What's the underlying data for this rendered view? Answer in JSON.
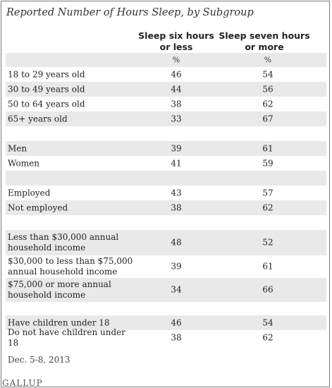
{
  "title": "Reported Number of Hours Sleep, by Subgroup",
  "chart_data": {
    "type": "table",
    "columns": [
      "Sleep six hours or less",
      "Sleep seven hours or more"
    ],
    "units": [
      "%",
      "%"
    ],
    "rows": [
      {
        "label": "18 to 29 years old",
        "values": [
          46,
          54
        ]
      },
      {
        "label": "30 to 49 years old",
        "values": [
          44,
          56
        ]
      },
      {
        "label": "50 to 64 years old",
        "values": [
          38,
          62
        ]
      },
      {
        "label": "65+ years old",
        "values": [
          33,
          67
        ]
      },
      {
        "label": "Men",
        "values": [
          39,
          61
        ]
      },
      {
        "label": "Women",
        "values": [
          41,
          59
        ]
      },
      {
        "label": "Employed",
        "values": [
          43,
          57
        ]
      },
      {
        "label": "Not employed",
        "values": [
          38,
          62
        ]
      },
      {
        "label": "Less than $30,000 annual household income",
        "values": [
          48,
          52
        ]
      },
      {
        "label": "$30,000 to less than $75,000 annual household income",
        "values": [
          39,
          61
        ]
      },
      {
        "label": "$75,000 or more annual household income",
        "values": [
          34,
          66
        ]
      },
      {
        "label": "Have children under 18",
        "values": [
          46,
          54
        ]
      },
      {
        "label": "Do not have children under 18",
        "values": [
          38,
          62
        ]
      }
    ]
  },
  "col1_head": [
    "Sleep six hours",
    "or less"
  ],
  "col2_head": [
    "Sleep seven hours",
    "or more"
  ],
  "footnote": "Dec. 5-8, 2013",
  "source": "GALLUP"
}
